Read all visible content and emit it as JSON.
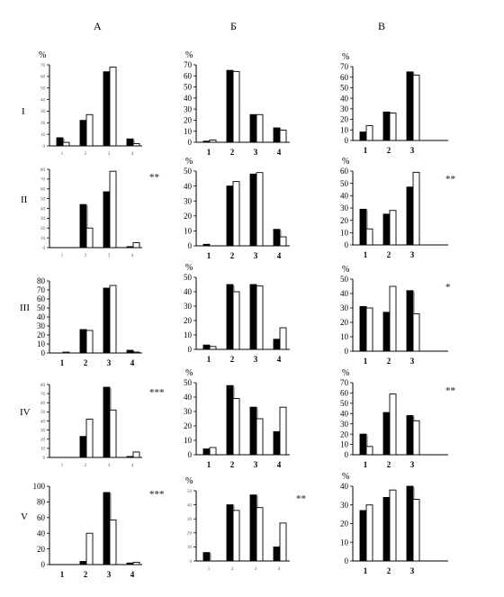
{
  "columns": [
    "А",
    "Б",
    "В"
  ],
  "rows": [
    "I",
    "II",
    "III",
    "IV",
    "V"
  ],
  "colors": {
    "filled": "#000000",
    "open": "#ffffff",
    "axis": "#000000"
  },
  "chart_data": [
    {
      "type": "bar",
      "panel": "A-I",
      "ylabel": "%",
      "categories": [
        "1",
        "2",
        "3",
        "4"
      ],
      "ylim": [
        0,
        70
      ],
      "yticks": [
        0,
        10,
        20,
        30,
        40,
        50,
        60,
        70
      ],
      "series": [
        {
          "style": "filled",
          "values": [
            7,
            22,
            64,
            6
          ]
        },
        {
          "style": "open",
          "values": [
            3,
            27,
            68,
            2
          ]
        }
      ],
      "significance": ""
    },
    {
      "type": "bar",
      "panel": "Б-I",
      "ylabel": "%",
      "categories": [
        "1",
        "2",
        "3",
        "4"
      ],
      "ylim": [
        0,
        70
      ],
      "yticks": [
        0,
        10,
        20,
        30,
        40,
        50,
        60,
        70
      ],
      "series": [
        {
          "style": "filled",
          "values": [
            1,
            65,
            25,
            13
          ]
        },
        {
          "style": "open",
          "values": [
            2,
            64,
            25,
            11
          ]
        }
      ],
      "significance": ""
    },
    {
      "type": "bar",
      "panel": "В-I",
      "ylabel": "%",
      "categories": [
        "1",
        "2",
        "3"
      ],
      "ylim": [
        0,
        70
      ],
      "yticks": [
        0,
        10,
        20,
        30,
        40,
        50,
        60,
        70
      ],
      "series": [
        {
          "style": "filled",
          "values": [
            8,
            27,
            65
          ]
        },
        {
          "style": "open",
          "values": [
            14,
            26,
            62
          ]
        }
      ],
      "significance": ""
    },
    {
      "type": "bar",
      "panel": "A-II",
      "ylabel": "",
      "categories": [
        "1",
        "2",
        "3",
        "4"
      ],
      "ylim": [
        0,
        80
      ],
      "yticks": [
        0,
        10,
        20,
        30,
        40,
        50,
        60,
        70,
        80
      ],
      "series": [
        {
          "style": "filled",
          "values": [
            0,
            44,
            57,
            1
          ]
        },
        {
          "style": "open",
          "values": [
            0,
            20,
            78,
            5
          ]
        }
      ],
      "significance": "**"
    },
    {
      "type": "bar",
      "panel": "Б-II",
      "ylabel": "%",
      "categories": [
        "1",
        "2",
        "3",
        "4"
      ],
      "ylim": [
        0,
        50
      ],
      "yticks": [
        0,
        10,
        20,
        30,
        40,
        50
      ],
      "series": [
        {
          "style": "filled",
          "values": [
            1,
            40,
            48,
            11
          ]
        },
        {
          "style": "open",
          "values": [
            0,
            43,
            49,
            6
          ]
        }
      ],
      "significance": ""
    },
    {
      "type": "bar",
      "panel": "В-II",
      "ylabel": "%",
      "categories": [
        "1",
        "2",
        "3"
      ],
      "ylim": [
        0,
        60
      ],
      "yticks": [
        0,
        10,
        20,
        30,
        40,
        50,
        60
      ],
      "series": [
        {
          "style": "filled",
          "values": [
            29,
            25,
            47
          ]
        },
        {
          "style": "open",
          "values": [
            13,
            28,
            59
          ]
        }
      ],
      "significance": "**"
    },
    {
      "type": "bar",
      "panel": "A-III",
      "ylabel": "",
      "categories": [
        "1",
        "2",
        "3",
        "4"
      ],
      "ylim": [
        0,
        80
      ],
      "yticks": [
        0,
        10,
        20,
        30,
        40,
        50,
        60,
        70,
        80
      ],
      "series": [
        {
          "style": "filled",
          "values": [
            0,
            26,
            72,
            3
          ]
        },
        {
          "style": "open",
          "values": [
            1,
            25,
            75,
            1
          ]
        }
      ],
      "significance": ""
    },
    {
      "type": "bar",
      "panel": "Б-III",
      "ylabel": "%",
      "categories": [
        "1",
        "2",
        "3",
        "4"
      ],
      "ylim": [
        0,
        50
      ],
      "yticks": [
        0,
        10,
        20,
        30,
        40,
        50
      ],
      "series": [
        {
          "style": "filled",
          "values": [
            3,
            45,
            45,
            7
          ]
        },
        {
          "style": "open",
          "values": [
            2,
            40,
            44,
            15
          ]
        }
      ],
      "significance": ""
    },
    {
      "type": "bar",
      "panel": "В-III",
      "ylabel": "%",
      "categories": [
        "1",
        "2",
        "3"
      ],
      "ylim": [
        0,
        50
      ],
      "yticks": [
        0,
        10,
        20,
        30,
        40,
        50
      ],
      "series": [
        {
          "style": "filled",
          "values": [
            31,
            27,
            42
          ]
        },
        {
          "style": "open",
          "values": [
            30,
            45,
            26
          ]
        }
      ],
      "significance": "*"
    },
    {
      "type": "bar",
      "panel": "A-IV",
      "ylabel": "",
      "categories": [
        "1",
        "2",
        "3",
        "4"
      ],
      "ylim": [
        0,
        80
      ],
      "yticks": [
        0,
        10,
        20,
        30,
        40,
        50,
        60,
        70,
        80
      ],
      "series": [
        {
          "style": "filled",
          "values": [
            0,
            23,
            77,
            1
          ]
        },
        {
          "style": "open",
          "values": [
            0,
            42,
            52,
            6
          ]
        }
      ],
      "significance": "***"
    },
    {
      "type": "bar",
      "panel": "Б-IV",
      "ylabel": "%",
      "categories": [
        "1",
        "2",
        "3",
        "4"
      ],
      "ylim": [
        0,
        50
      ],
      "yticks": [
        0,
        10,
        20,
        30,
        40,
        50
      ],
      "series": [
        {
          "style": "filled",
          "values": [
            4,
            48,
            33,
            16
          ]
        },
        {
          "style": "open",
          "values": [
            5,
            39,
            25,
            33
          ]
        }
      ],
      "significance": ""
    },
    {
      "type": "bar",
      "panel": "В-IV",
      "ylabel": "%",
      "categories": [
        "1",
        "2",
        "3"
      ],
      "ylim": [
        0,
        70
      ],
      "yticks": [
        0,
        10,
        20,
        30,
        40,
        50,
        60,
        70
      ],
      "series": [
        {
          "style": "filled",
          "values": [
            20,
            41,
            38
          ]
        },
        {
          "style": "open",
          "values": [
            8,
            59,
            33
          ]
        }
      ],
      "significance": "**"
    },
    {
      "type": "bar",
      "panel": "A-V",
      "ylabel": "",
      "categories": [
        "1",
        "2",
        "3",
        "4"
      ],
      "ylim": [
        0,
        100
      ],
      "yticks": [
        0,
        20,
        40,
        60,
        80,
        100
      ],
      "series": [
        {
          "style": "filled",
          "values": [
            0,
            4,
            92,
            2
          ]
        },
        {
          "style": "open",
          "values": [
            0,
            40,
            57,
            3
          ]
        }
      ],
      "significance": "***"
    },
    {
      "type": "bar",
      "panel": "Б-V",
      "ylabel": "%",
      "categories": [
        "1",
        "2",
        "3",
        "4"
      ],
      "ylim": [
        0,
        50
      ],
      "yticks": [
        0,
        10,
        20,
        30,
        40,
        50
      ],
      "series": [
        {
          "style": "filled",
          "values": [
            6,
            40,
            47,
            10
          ]
        },
        {
          "style": "open",
          "values": [
            0,
            36,
            38,
            27
          ]
        }
      ],
      "significance": "**"
    },
    {
      "type": "bar",
      "panel": "В-V",
      "ylabel": "%",
      "categories": [
        "1",
        "2",
        "3"
      ],
      "ylim": [
        0,
        40
      ],
      "yticks": [
        0,
        10,
        20,
        30,
        40
      ],
      "series": [
        {
          "style": "filled",
          "values": [
            27,
            34,
            40
          ]
        },
        {
          "style": "open",
          "values": [
            30,
            38,
            33
          ]
        }
      ],
      "significance": ""
    }
  ]
}
